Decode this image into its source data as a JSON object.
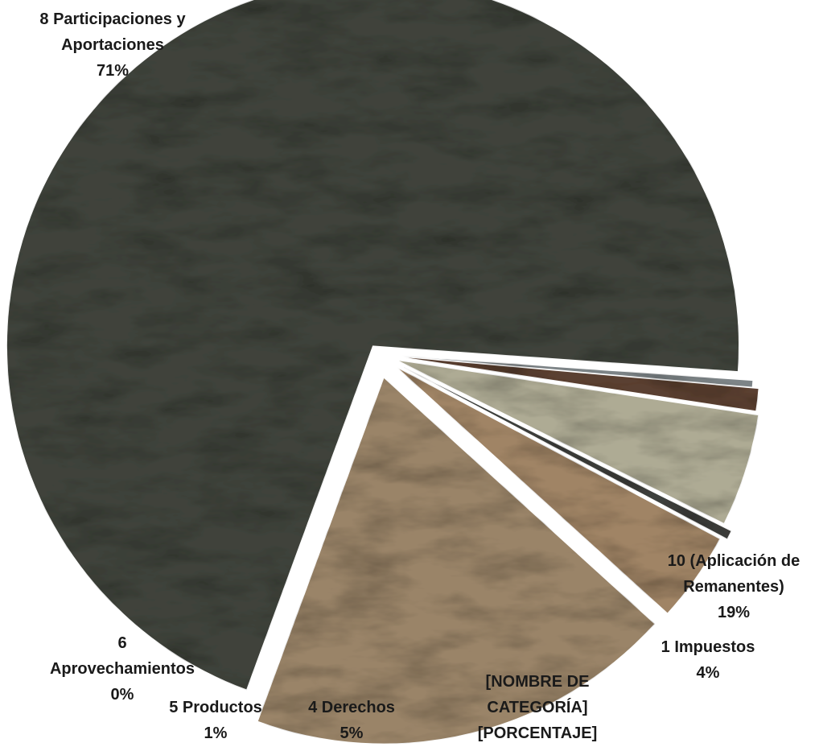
{
  "chart_data": {
    "type": "pie",
    "exploded": true,
    "title": "",
    "slices": [
      {
        "name": "8 Participaciones y Aportaciones",
        "label_lines": [
          "8 Participaciones y",
          "Aportaciones",
          "71%"
        ],
        "value": 71,
        "color": "#3f433b"
      },
      {
        "name": "10 (Aplicación de Remanentes)",
        "label_lines": [
          "10 (Aplicación de",
          "Remanentes)",
          "19%"
        ],
        "value": 19,
        "color": "#9a8468"
      },
      {
        "name": "1 Impuestos",
        "label_lines": [
          "1 Impuestos",
          "4%"
        ],
        "value": 4,
        "color": "#a08465"
      },
      {
        "name": "[NOMBRE DE CATEGORÍA]",
        "label_lines": [
          "[NOMBRE DE",
          "CATEGORÍA]",
          "[PORCENTAJE]"
        ],
        "value": 0.4,
        "color": "#3e3f3c"
      },
      {
        "name": "4 Derechos",
        "label_lines": [
          "4 Derechos",
          "5%"
        ],
        "value": 5,
        "color": "#aeab94"
      },
      {
        "name": "5 Productos",
        "label_lines": [
          "5 Productos",
          "1%"
        ],
        "value": 1,
        "color": "#5a3f30"
      },
      {
        "name": "6 Aprovechamientos",
        "label_lines": [
          "6",
          "Aprovechamientos",
          "0%"
        ],
        "value": 0.3,
        "color": "#7d8487"
      }
    ]
  }
}
